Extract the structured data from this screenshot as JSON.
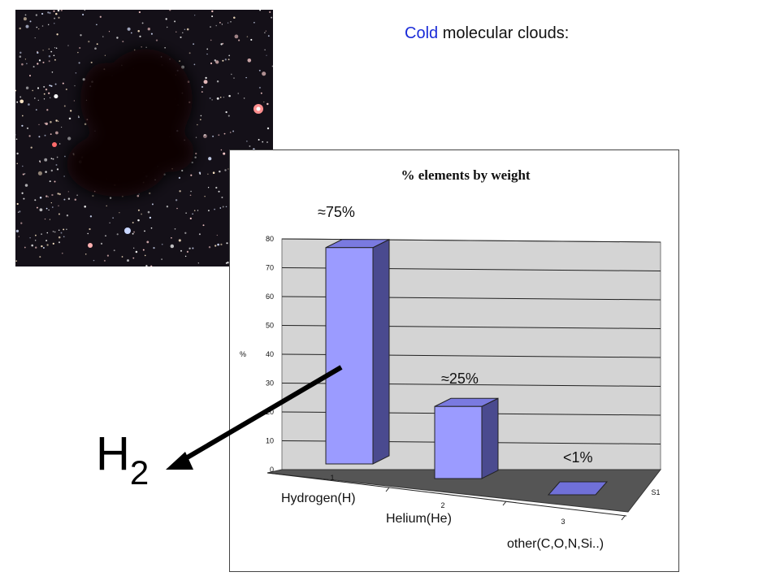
{
  "slide": {
    "title_highlight": "Cold",
    "title_rest": " molecular clouds:",
    "molecule_main": "H",
    "molecule_sub": "2",
    "colors": {
      "highlight": "#1a2bd8",
      "bar_face": "#9b9bff",
      "bar_side": "#4a4a8f",
      "floor": "#555555",
      "wall": "#d4d4d4",
      "arrow": "#000000"
    }
  },
  "chart_data": {
    "type": "bar",
    "title": "% elements by weight",
    "ylabel": "%",
    "ylim": [
      0,
      80
    ],
    "yticks": [
      0,
      10,
      20,
      30,
      40,
      50,
      60,
      70,
      80
    ],
    "categories": [
      "1",
      "2",
      "3"
    ],
    "category_names": [
      "Hydrogen(H)",
      "Helium(He)",
      "other(C,O,N,Si..)"
    ],
    "series": [
      {
        "name": "S1",
        "values": [
          75,
          25,
          1
        ]
      }
    ],
    "annotations": [
      "≈75%",
      "≈25%",
      "<1%"
    ],
    "grid": true,
    "style": "3d"
  }
}
